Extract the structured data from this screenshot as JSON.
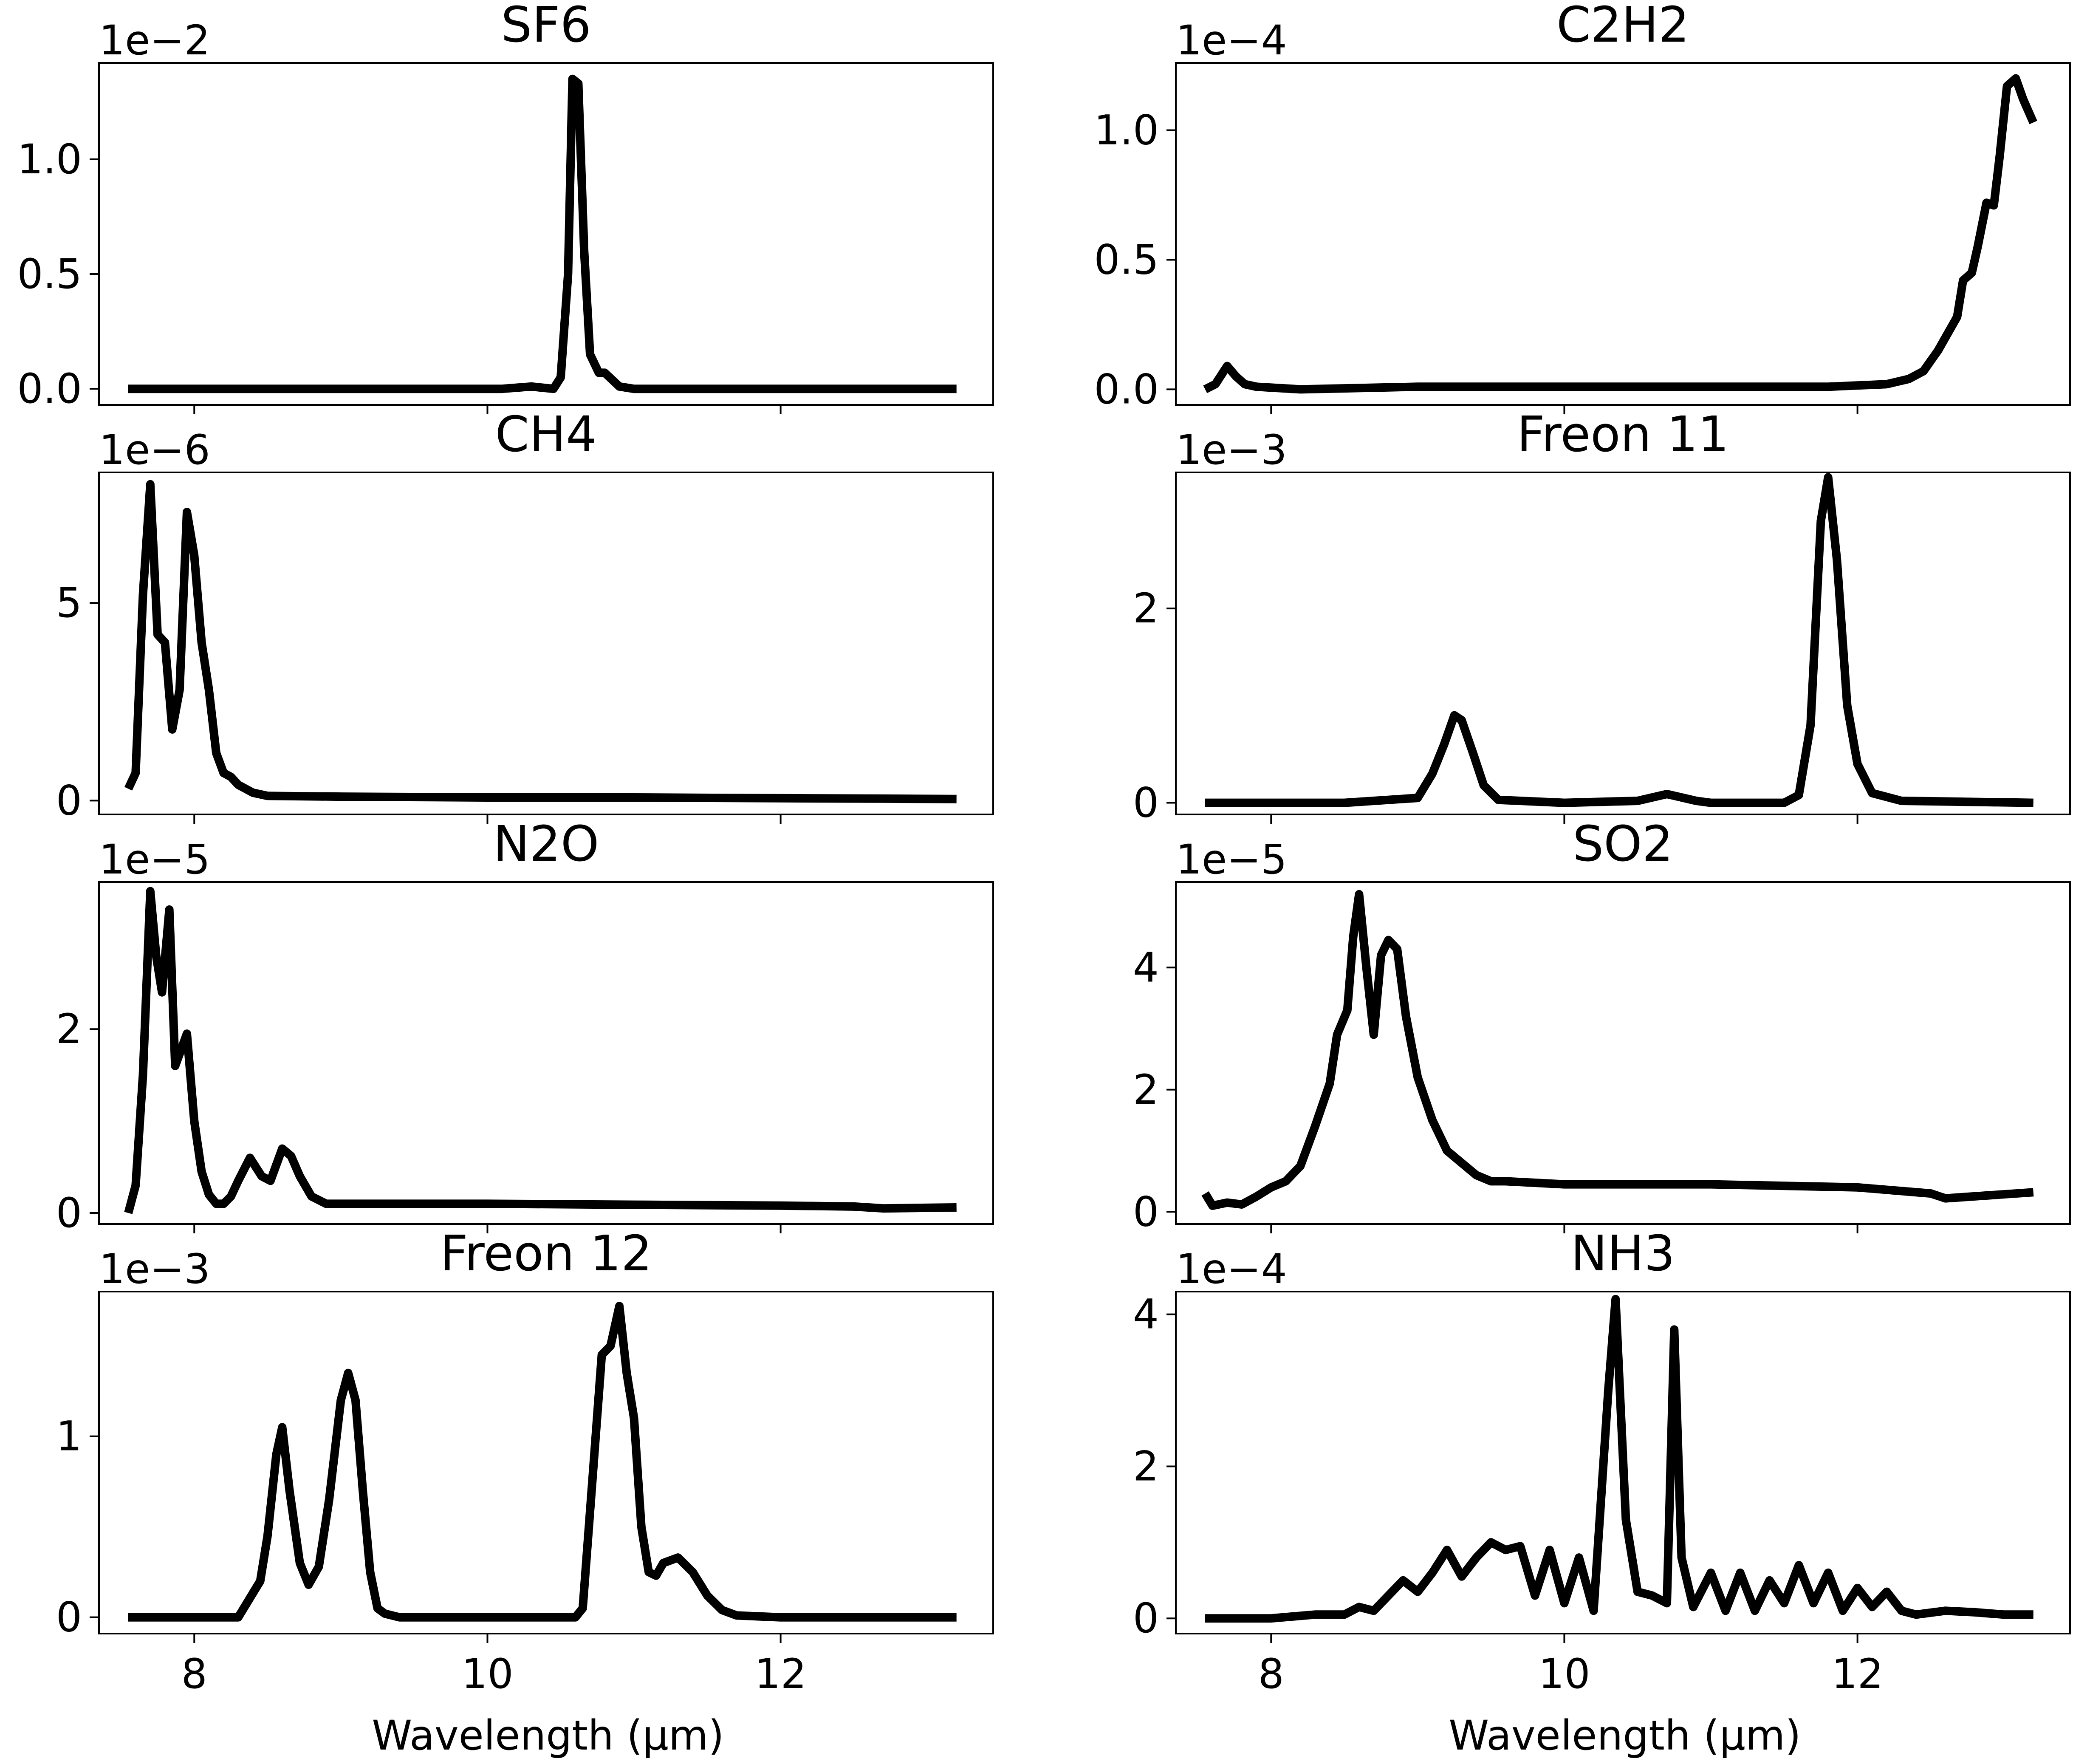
{
  "figure": {
    "xlabel": "Wavelength (μm)",
    "x_ticks": [
      8,
      10,
      12
    ],
    "x_tick_labels": [
      "8",
      "10",
      "12"
    ],
    "xlim": [
      7.35,
      13.45
    ]
  },
  "chart_data": [
    {
      "type": "line",
      "title": "SF6",
      "scale_label": "1e−2",
      "ylim": [
        -0.07,
        1.42
      ],
      "yticks": [
        0.0,
        0.5,
        1.0
      ],
      "ytick_labels": [
        "0.0",
        "0.5",
        "1.0"
      ],
      "x": [
        7.55,
        10.1,
        10.3,
        10.45,
        10.5,
        10.55,
        10.58,
        10.62,
        10.66,
        10.7,
        10.76,
        10.8,
        10.85,
        10.9,
        11.0,
        12.0,
        13.2
      ],
      "values": [
        0.0,
        0.0,
        0.01,
        0.0,
        0.05,
        0.5,
        1.35,
        1.33,
        0.6,
        0.15,
        0.07,
        0.07,
        0.04,
        0.01,
        0.0,
        0.0,
        0.0
      ]
    },
    {
      "type": "line",
      "title": "C2H2",
      "scale_label": "1e−4",
      "ylim": [
        -0.06,
        1.26
      ],
      "yticks": [
        0.0,
        0.5,
        1.0
      ],
      "ytick_labels": [
        "0.0",
        "0.5",
        "1.0"
      ],
      "x": [
        7.55,
        7.62,
        7.7,
        7.76,
        7.82,
        7.9,
        8.2,
        9.0,
        10.0,
        11.0,
        11.8,
        12.2,
        12.35,
        12.45,
        12.55,
        12.62,
        12.68,
        12.72,
        12.78,
        12.82,
        12.88,
        12.93,
        12.97,
        13.02,
        13.08,
        13.13,
        13.2
      ],
      "values": [
        0.0,
        0.02,
        0.09,
        0.05,
        0.02,
        0.01,
        0.0,
        0.01,
        0.01,
        0.01,
        0.01,
        0.02,
        0.04,
        0.07,
        0.15,
        0.22,
        0.28,
        0.42,
        0.45,
        0.55,
        0.72,
        0.71,
        0.9,
        1.17,
        1.2,
        1.12,
        1.03
      ]
    },
    {
      "type": "line",
      "title": "CH4",
      "scale_label": "1e−6",
      "ylim": [
        -0.35,
        8.3
      ],
      "yticks": [
        0,
        5
      ],
      "ytick_labels": [
        "0",
        "5"
      ],
      "x": [
        7.55,
        7.6,
        7.65,
        7.7,
        7.75,
        7.8,
        7.85,
        7.9,
        7.95,
        8.0,
        8.05,
        8.1,
        8.15,
        8.2,
        8.25,
        8.3,
        8.4,
        8.5,
        9.0,
        10.0,
        11.0,
        12.0,
        12.7,
        13.2
      ],
      "values": [
        0.3,
        0.7,
        5.2,
        8.0,
        4.2,
        4.0,
        1.8,
        2.8,
        7.3,
        6.2,
        4.0,
        2.8,
        1.2,
        0.7,
        0.6,
        0.4,
        0.2,
        0.12,
        0.1,
        0.08,
        0.08,
        0.06,
        0.05,
        0.04
      ]
    },
    {
      "type": "line",
      "title": "Freon 11",
      "scale_label": "1e−3",
      "ylim": [
        -0.12,
        3.4
      ],
      "yticks": [
        0,
        2
      ],
      "ytick_labels": [
        "0",
        "2"
      ],
      "x": [
        7.55,
        8.5,
        9.0,
        9.1,
        9.18,
        9.25,
        9.3,
        9.38,
        9.45,
        9.55,
        10.0,
        10.5,
        10.7,
        10.9,
        11.0,
        11.5,
        11.6,
        11.68,
        11.75,
        11.8,
        11.86,
        11.93,
        12.0,
        12.1,
        12.3,
        13.2
      ],
      "values": [
        0.0,
        0.0,
        0.05,
        0.3,
        0.6,
        0.9,
        0.85,
        0.5,
        0.18,
        0.03,
        0.0,
        0.02,
        0.09,
        0.02,
        0.0,
        0.0,
        0.08,
        0.8,
        2.9,
        3.35,
        2.5,
        1.0,
        0.4,
        0.1,
        0.02,
        0.0
      ]
    },
    {
      "type": "line",
      "title": "N2O",
      "scale_label": "1e−5",
      "ylim": [
        -0.12,
        3.6
      ],
      "yticks": [
        0,
        2
      ],
      "ytick_labels": [
        "0",
        "2"
      ],
      "x": [
        7.55,
        7.6,
        7.65,
        7.7,
        7.74,
        7.78,
        7.83,
        7.87,
        7.95,
        8.0,
        8.05,
        8.1,
        8.15,
        8.2,
        8.25,
        8.3,
        8.38,
        8.46,
        8.52,
        8.6,
        8.66,
        8.72,
        8.8,
        8.9,
        9.0,
        10.0,
        11.0,
        12.0,
        12.5,
        12.7,
        13.2
      ],
      "values": [
        0.0,
        0.3,
        1.5,
        3.5,
        2.8,
        2.4,
        3.3,
        1.6,
        1.95,
        1.0,
        0.45,
        0.2,
        0.1,
        0.1,
        0.18,
        0.35,
        0.6,
        0.4,
        0.35,
        0.7,
        0.62,
        0.4,
        0.18,
        0.1,
        0.1,
        0.1,
        0.09,
        0.08,
        0.07,
        0.05,
        0.06
      ]
    },
    {
      "type": "line",
      "title": "SO2",
      "scale_label": "1e−5",
      "ylim": [
        -0.2,
        5.4
      ],
      "yticks": [
        0,
        2,
        4
      ],
      "ytick_labels": [
        "0",
        "2",
        "4"
      ],
      "x": [
        7.55,
        7.6,
        7.7,
        7.8,
        7.9,
        8.0,
        8.1,
        8.2,
        8.3,
        8.4,
        8.45,
        8.52,
        8.56,
        8.6,
        8.65,
        8.7,
        8.75,
        8.8,
        8.86,
        8.92,
        9.0,
        9.1,
        9.2,
        9.3,
        9.4,
        9.5,
        9.6,
        10.0,
        11.0,
        12.0,
        12.5,
        12.6,
        13.2
      ],
      "values": [
        0.3,
        0.1,
        0.15,
        0.12,
        0.25,
        0.4,
        0.5,
        0.75,
        1.4,
        2.1,
        2.9,
        3.3,
        4.5,
        5.2,
        4.0,
        2.9,
        4.2,
        4.45,
        4.3,
        3.2,
        2.2,
        1.5,
        1.0,
        0.8,
        0.6,
        0.5,
        0.5,
        0.45,
        0.45,
        0.4,
        0.3,
        0.22,
        0.32
      ]
    },
    {
      "type": "line",
      "title": "Freon 12",
      "scale_label": "1e−3",
      "ylim": [
        -0.09,
        1.8
      ],
      "yticks": [
        0,
        1
      ],
      "ytick_labels": [
        "0",
        "1"
      ],
      "x": [
        7.55,
        8.0,
        8.3,
        8.45,
        8.5,
        8.56,
        8.6,
        8.65,
        8.72,
        8.78,
        8.85,
        8.92,
        9.0,
        9.05,
        9.1,
        9.15,
        9.2,
        9.25,
        9.3,
        9.4,
        10.0,
        10.6,
        10.65,
        10.72,
        10.78,
        10.84,
        10.9,
        10.95,
        11.0,
        11.05,
        11.1,
        11.15,
        11.2,
        11.3,
        11.4,
        11.5,
        11.6,
        11.7,
        12.0,
        13.2
      ],
      "values": [
        0.0,
        0.0,
        0.0,
        0.2,
        0.45,
        0.9,
        1.05,
        0.7,
        0.3,
        0.18,
        0.28,
        0.65,
        1.2,
        1.35,
        1.2,
        0.7,
        0.25,
        0.05,
        0.02,
        0.0,
        0.0,
        0.0,
        0.05,
        0.8,
        1.45,
        1.5,
        1.72,
        1.35,
        1.1,
        0.5,
        0.25,
        0.23,
        0.3,
        0.33,
        0.25,
        0.12,
        0.04,
        0.01,
        0.0,
        0.0
      ]
    },
    {
      "type": "line",
      "title": "NH3",
      "scale_label": "1e−4",
      "ylim": [
        -0.2,
        4.3
      ],
      "yticks": [
        0,
        2,
        4
      ],
      "ytick_labels": [
        "0",
        "2",
        "4"
      ],
      "x": [
        7.55,
        8.0,
        8.3,
        8.5,
        8.6,
        8.7,
        8.8,
        8.9,
        9.0,
        9.1,
        9.2,
        9.3,
        9.4,
        9.5,
        9.6,
        9.7,
        9.8,
        9.9,
        10.0,
        10.1,
        10.2,
        10.3,
        10.35,
        10.42,
        10.5,
        10.6,
        10.7,
        10.75,
        10.8,
        10.88,
        11.0,
        11.1,
        11.2,
        11.3,
        11.4,
        11.5,
        11.6,
        11.7,
        11.8,
        11.9,
        12.0,
        12.1,
        12.2,
        12.3,
        12.4,
        12.6,
        12.8,
        13.0,
        13.2
      ],
      "values": [
        0.0,
        0.0,
        0.05,
        0.05,
        0.15,
        0.1,
        0.3,
        0.5,
        0.35,
        0.6,
        0.9,
        0.55,
        0.8,
        1.0,
        0.9,
        0.95,
        0.3,
        0.9,
        0.2,
        0.8,
        0.1,
        3.0,
        4.2,
        1.3,
        0.35,
        0.3,
        0.2,
        3.8,
        0.8,
        0.15,
        0.6,
        0.1,
        0.6,
        0.1,
        0.5,
        0.2,
        0.7,
        0.2,
        0.6,
        0.1,
        0.4,
        0.15,
        0.35,
        0.1,
        0.05,
        0.1,
        0.08,
        0.05,
        0.05
      ]
    }
  ]
}
